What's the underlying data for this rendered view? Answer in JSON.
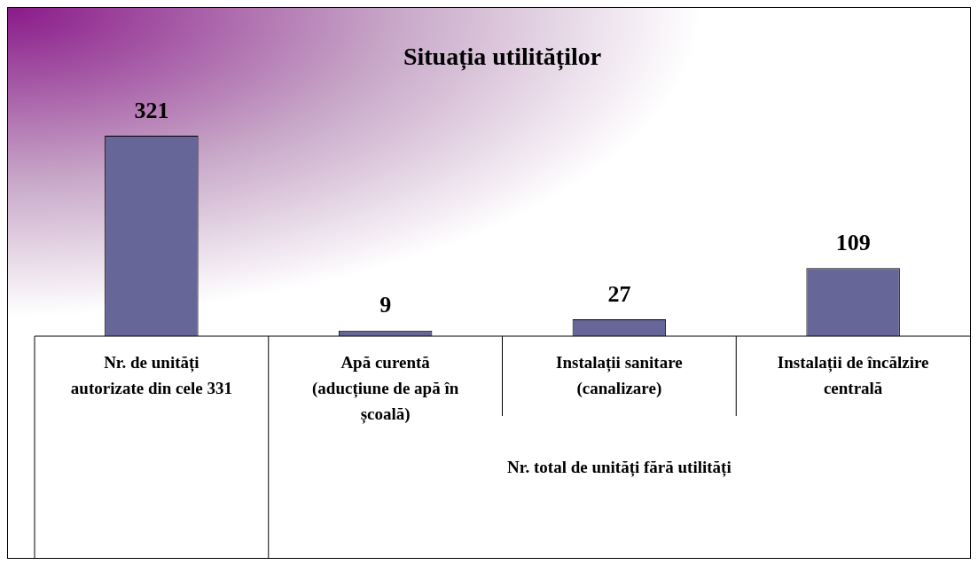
{
  "chart_data": {
    "type": "bar",
    "title": "Situația utilităților",
    "categories": [
      "Nr. de unități autorizate din cele 331",
      "Apă curentă (aducțiune de apă în școală)",
      "Instalații sanitare (canalizare)",
      "Instalații de încălzire centrală"
    ],
    "values": [
      321,
      9,
      27,
      109
    ],
    "color": "#666699",
    "data_labels": true,
    "annotations": [
      "Nr. total de unități fără utilități"
    ]
  }
}
